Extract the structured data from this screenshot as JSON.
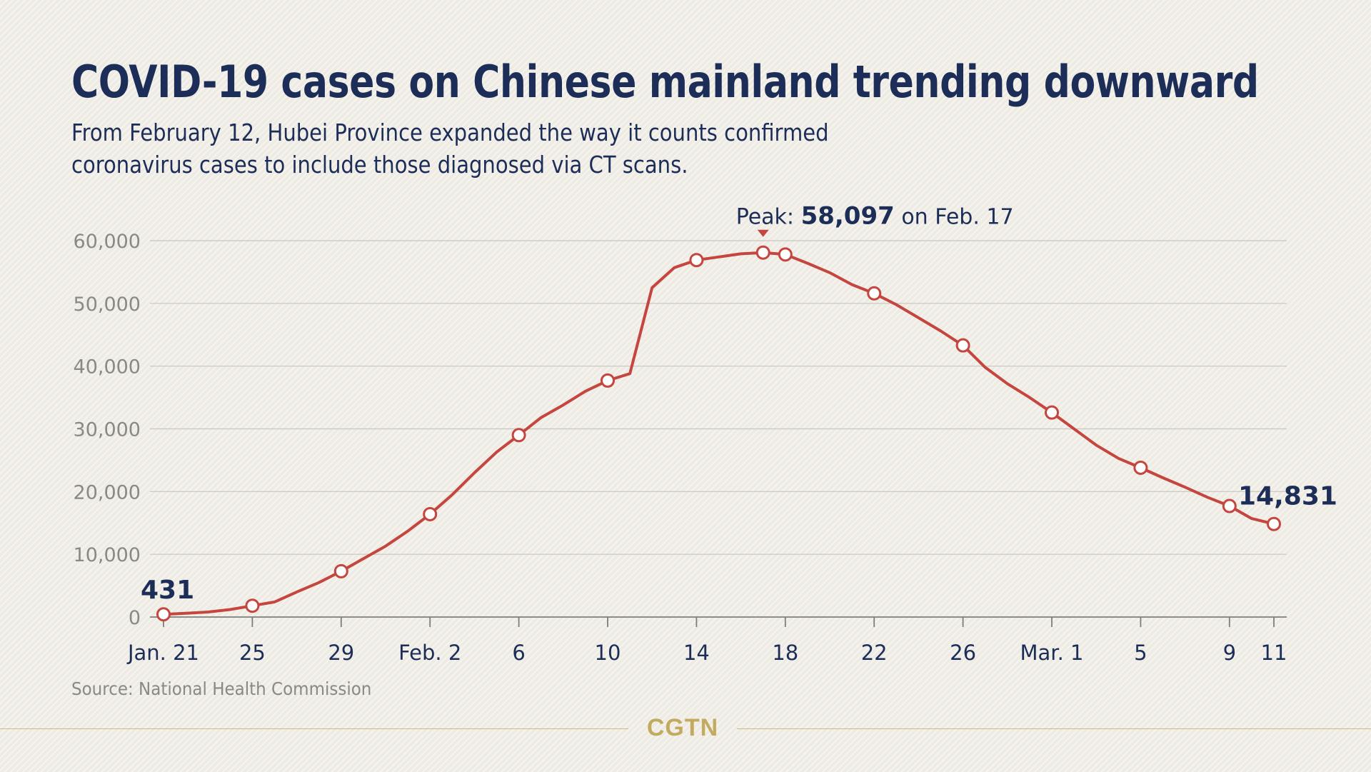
{
  "title": "COVID-19 cases on Chinese mainland trending downward",
  "subtitle_lines": [
    "From February 12, Hubei Province expanded the way it counts confirmed",
    "coronavirus cases to include those diagnosed via CT scans."
  ],
  "source": "Source: National Health Commission",
  "brand": "CGTN",
  "colors": {
    "line": "#c5453f",
    "text": "#1c2d57",
    "axis_text": "#8a8983",
    "grid": "#c8c6c0",
    "brand": "#c2ab5f"
  },
  "chart_data": {
    "type": "line",
    "title": "",
    "xlabel": "",
    "ylabel": "",
    "ylim": [
      0,
      60000
    ],
    "yticks": [
      0,
      10000,
      20000,
      30000,
      40000,
      50000,
      60000
    ],
    "ytick_labels": [
      "0",
      "10,000",
      "20,000",
      "30,000",
      "40,000",
      "50,000",
      "60,000"
    ],
    "grid": true,
    "x": [
      "Jan. 21",
      "Jan. 22",
      "Jan. 23",
      "Jan. 24",
      "Jan. 25",
      "Jan. 26",
      "Jan. 27",
      "Jan. 28",
      "Jan. 29",
      "Jan. 30",
      "Jan. 31",
      "Feb. 1",
      "Feb. 2",
      "Feb. 3",
      "Feb. 4",
      "Feb. 5",
      "Feb. 6",
      "Feb. 7",
      "Feb. 8",
      "Feb. 9",
      "Feb. 10",
      "Feb. 11",
      "Feb. 12",
      "Feb. 13",
      "Feb. 14",
      "Feb. 15",
      "Feb. 16",
      "Feb. 17",
      "Feb. 18",
      "Feb. 19",
      "Feb. 20",
      "Feb. 21",
      "Feb. 22",
      "Feb. 23",
      "Feb. 24",
      "Feb. 25",
      "Feb. 26",
      "Feb. 27",
      "Feb. 28",
      "Feb. 29",
      "Mar. 1",
      "Mar. 2",
      "Mar. 3",
      "Mar. 4",
      "Mar. 5",
      "Mar. 6",
      "Mar. 7",
      "Mar. 8",
      "Mar. 9",
      "Mar. 10",
      "Mar. 11"
    ],
    "xtick_labels": [
      {
        "index": 0,
        "label": "Jan. 21"
      },
      {
        "index": 4,
        "label": "25"
      },
      {
        "index": 8,
        "label": "29"
      },
      {
        "index": 12,
        "label": "Feb. 2"
      },
      {
        "index": 16,
        "label": "6"
      },
      {
        "index": 20,
        "label": "10"
      },
      {
        "index": 24,
        "label": "14"
      },
      {
        "index": 28,
        "label": "18"
      },
      {
        "index": 32,
        "label": "22"
      },
      {
        "index": 36,
        "label": "26"
      },
      {
        "index": 40,
        "label": "Mar. 1"
      },
      {
        "index": 44,
        "label": "5"
      },
      {
        "index": 48,
        "label": "9"
      },
      {
        "index": 50,
        "label": "11"
      }
    ],
    "series": [
      {
        "values": [
          431,
          600,
          800,
          1200,
          1800,
          2400,
          4000,
          5500,
          7300,
          9300,
          11300,
          13700,
          16400,
          19500,
          23000,
          26300,
          29000,
          31800,
          33800,
          36000,
          37700,
          38800,
          52500,
          55700,
          56900,
          57400,
          57900,
          58097,
          57800,
          56400,
          54900,
          53000,
          51600,
          49800,
          47700,
          45600,
          43300,
          39800,
          37200,
          35000,
          32600,
          30000,
          27400,
          25300,
          23800,
          22200,
          20700,
          19100,
          17700,
          15700,
          14831
        ],
        "marker_indices": [
          0,
          4,
          8,
          12,
          16,
          20,
          24,
          27,
          28,
          32,
          36,
          40,
          44,
          48,
          50
        ]
      }
    ],
    "annotations": {
      "start_value": "431",
      "end_value": "14,831",
      "peak": {
        "index": 27,
        "prefix": "Peak: ",
        "value": "58,097",
        "suffix": " on Feb. 17"
      }
    }
  }
}
